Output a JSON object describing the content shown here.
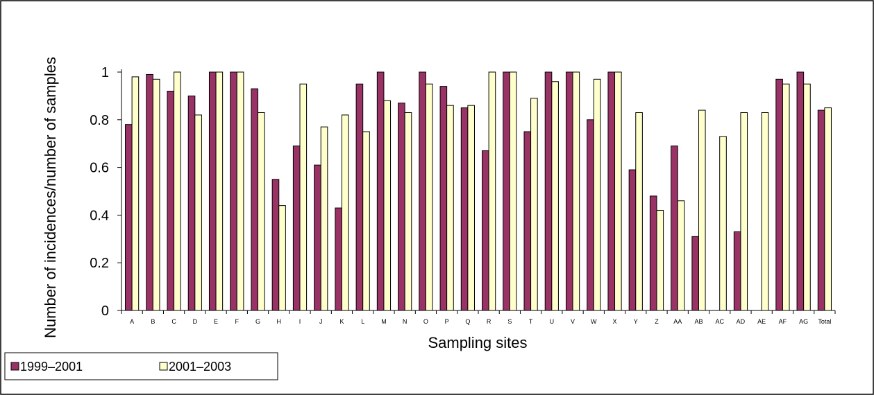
{
  "chart_data": {
    "type": "bar",
    "title": "",
    "xlabel": "Sampling sites",
    "ylabel": "Number of incidences/number of samples",
    "ylim": [
      0,
      1
    ],
    "yticks": [
      "0",
      "0.2",
      "0.4",
      "0.6",
      "0.8",
      "1"
    ],
    "grid": false,
    "legend_position": "bottom-left",
    "categories": [
      "A",
      "B",
      "C",
      "D",
      "E",
      "F",
      "G",
      "H",
      "I",
      "J",
      "K",
      "L",
      "M",
      "N",
      "O",
      "P",
      "Q",
      "R",
      "S",
      "T",
      "U",
      "V",
      "W",
      "X",
      "Y",
      "Z",
      "AA",
      "AB",
      "AC",
      "AD",
      "AE",
      "AF",
      "AG",
      "Total"
    ],
    "series": [
      {
        "name": "1999–2001",
        "color": "#993366",
        "values": [
          0.78,
          0.99,
          0.92,
          0.9,
          1.0,
          1.0,
          0.93,
          0.55,
          0.69,
          0.61,
          0.43,
          0.95,
          1.0,
          0.87,
          1.0,
          0.94,
          0.85,
          0.67,
          1.0,
          0.75,
          1.0,
          1.0,
          0.8,
          1.0,
          0.59,
          0.48,
          0.69,
          0.31,
          0,
          0.33,
          0,
          0.97,
          1.0,
          0.84
        ]
      },
      {
        "name": "2001–2003",
        "color": "#ffffcc",
        "values": [
          0.98,
          0.97,
          1.0,
          0.82,
          1.0,
          1.0,
          0.83,
          0.44,
          0.95,
          0.77,
          0.82,
          0.75,
          0.88,
          0.83,
          0.95,
          0.86,
          0.86,
          1.0,
          1.0,
          0.89,
          0.96,
          1.0,
          0.97,
          1.0,
          0.83,
          0.42,
          0.46,
          0.84,
          0.73,
          0.83,
          0.83,
          0.95,
          0.95,
          0.85
        ]
      }
    ]
  }
}
